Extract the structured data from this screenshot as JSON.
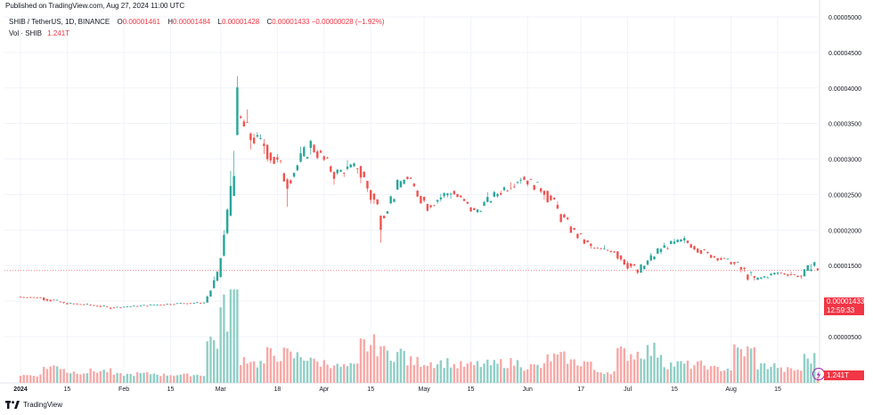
{
  "published": "Published on TradingView.com, Aug 27, 2024 11:00 UTC",
  "legend": {
    "symbol": "SHIB / TetherUS, 1D, BINANCE",
    "o_label": "O",
    "o": "0.00001461",
    "h_label": "H",
    "h": "0.00001484",
    "l_label": "L",
    "l": "0.00001428",
    "c_label": "C",
    "c": "0.00001433",
    "change": "−0.00000028 (−1.92%)",
    "vol_label": "Vol · SHIB",
    "vol": "1.241T"
  },
  "price_tag": {
    "price": "0.00001433",
    "countdown": "12:59:33"
  },
  "vol_tag": "1.241T",
  "brand": "TradingView",
  "colors": {
    "up": "#26a69a",
    "down": "#ef5350",
    "up_vol": "#8fcfc6",
    "down_vol": "#f7a9a7",
    "grid": "#f0f3fa"
  },
  "chart_data": {
    "type": "candlestick",
    "y_axis_ticks": [
      "0.00000500",
      "0.00001000",
      "0.00001500",
      "0.00002000",
      "0.00002500",
      "0.00003000",
      "0.00003500",
      "0.00004000",
      "0.00004500",
      "0.00005000"
    ],
    "x_axis_ticks": [
      "2024",
      "15",
      "Feb",
      "15",
      "Mar",
      "18",
      "Apr",
      "15",
      "May",
      "15",
      "Jun",
      "17",
      "Jul",
      "15",
      "Aug",
      "15"
    ],
    "ylim": [
      5e-06,
      5e-05
    ],
    "x_start": "2024-01-01",
    "series": [
      {
        "date": "2024-01-01",
        "o": 1.06e-05,
        "h": 1.08e-05,
        "l": 1.03e-05,
        "c": 1.05e-05
      },
      {
        "date": "2024-01-08",
        "o": 1.05e-05,
        "h": 1.06e-05,
        "l": 9.1e-06,
        "c": 9.7e-06
      },
      {
        "date": "2024-01-15",
        "o": 9.7e-06,
        "h": 1.01e-05,
        "l": 9.3e-06,
        "c": 9.5e-06
      },
      {
        "date": "2024-01-22",
        "o": 9.5e-06,
        "h": 9.7e-06,
        "l": 8.8e-06,
        "c": 9.1e-06
      },
      {
        "date": "2024-01-29",
        "o": 9.1e-06,
        "h": 9.5e-06,
        "l": 9e-06,
        "c": 9.3e-06
      },
      {
        "date": "2024-02-05",
        "o": 9.3e-06,
        "h": 9.7e-06,
        "l": 9.1e-06,
        "c": 9.5e-06
      },
      {
        "date": "2024-02-12",
        "o": 9.5e-06,
        "h": 9.9e-06,
        "l": 9.4e-06,
        "c": 9.7e-06
      },
      {
        "date": "2024-02-19",
        "o": 9.7e-06,
        "h": 1e-05,
        "l": 9.5e-06,
        "c": 9.8e-06
      },
      {
        "date": "2024-02-26",
        "o": 9.8e-06,
        "h": 1.4e-05,
        "l": 9.7e-06,
        "c": 1.34e-05
      },
      {
        "date": "2024-03-01",
        "o": 1.34e-05,
        "h": 2.3e-05,
        "l": 1.3e-05,
        "c": 2.2e-05
      },
      {
        "date": "2024-03-04",
        "o": 2.2e-05,
        "h": 4.56e-05,
        "l": 2.18e-05,
        "c": 3.6e-05
      },
      {
        "date": "2024-03-07",
        "o": 3.6e-05,
        "h": 3.95e-05,
        "l": 3.1e-05,
        "c": 3.3e-05
      },
      {
        "date": "2024-03-11",
        "o": 3.3e-05,
        "h": 3.6e-05,
        "l": 3e-05,
        "c": 3.2e-05
      },
      {
        "date": "2024-03-15",
        "o": 3.2e-05,
        "h": 3.3e-05,
        "l": 2.4e-05,
        "c": 2.7e-05
      },
      {
        "date": "2024-03-22",
        "o": 2.7e-05,
        "h": 3.3e-05,
        "l": 2.6e-05,
        "c": 3.2e-05
      },
      {
        "date": "2024-03-29",
        "o": 3.2e-05,
        "h": 3.3e-05,
        "l": 2.7e-05,
        "c": 2.8e-05
      },
      {
        "date": "2024-04-05",
        "o": 2.8e-05,
        "h": 3e-05,
        "l": 2.6e-05,
        "c": 2.9e-05
      },
      {
        "date": "2024-04-12",
        "o": 2.9e-05,
        "h": 2.92e-05,
        "l": 1.8e-05,
        "c": 2.2e-05
      },
      {
        "date": "2024-04-19",
        "o": 2.2e-05,
        "h": 2.8e-05,
        "l": 2.15e-05,
        "c": 2.75e-05
      },
      {
        "date": "2024-04-26",
        "o": 2.75e-05,
        "h": 2.8e-05,
        "l": 2.25e-05,
        "c": 2.35e-05
      },
      {
        "date": "2024-05-03",
        "o": 2.35e-05,
        "h": 2.65e-05,
        "l": 2.2e-05,
        "c": 2.55e-05
      },
      {
        "date": "2024-05-10",
        "o": 2.55e-05,
        "h": 2.6e-05,
        "l": 2.2e-05,
        "c": 2.25e-05
      },
      {
        "date": "2024-05-17",
        "o": 2.25e-05,
        "h": 2.6e-05,
        "l": 2.22e-05,
        "c": 2.52e-05
      },
      {
        "date": "2024-05-24",
        "o": 2.52e-05,
        "h": 2.92e-05,
        "l": 2.45e-05,
        "c": 2.75e-05
      },
      {
        "date": "2024-05-31",
        "o": 2.75e-05,
        "h": 2.8e-05,
        "l": 2.4e-05,
        "c": 2.55e-05
      },
      {
        "date": "2024-06-07",
        "o": 2.55e-05,
        "h": 2.62e-05,
        "l": 2e-05,
        "c": 2.05e-05
      },
      {
        "date": "2024-06-14",
        "o": 2.05e-05,
        "h": 2.1e-05,
        "l": 1.7e-05,
        "c": 1.75e-05
      },
      {
        "date": "2024-06-21",
        "o": 1.75e-05,
        "h": 1.8e-05,
        "l": 1.65e-05,
        "c": 1.7e-05
      },
      {
        "date": "2024-06-28",
        "o": 1.7e-05,
        "h": 1.75e-05,
        "l": 1.25e-05,
        "c": 1.4e-05
      },
      {
        "date": "2024-07-05",
        "o": 1.4e-05,
        "h": 1.8e-05,
        "l": 1.35e-05,
        "c": 1.75e-05
      },
      {
        "date": "2024-07-12",
        "o": 1.75e-05,
        "h": 2e-05,
        "l": 1.7e-05,
        "c": 1.85e-05
      },
      {
        "date": "2024-07-19",
        "o": 1.85e-05,
        "h": 1.9e-05,
        "l": 1.6e-05,
        "c": 1.65e-05
      },
      {
        "date": "2024-07-26",
        "o": 1.65e-05,
        "h": 1.7e-05,
        "l": 1.5e-05,
        "c": 1.55e-05
      },
      {
        "date": "2024-08-02",
        "o": 1.55e-05,
        "h": 1.57e-05,
        "l": 1.08e-05,
        "c": 1.3e-05
      },
      {
        "date": "2024-08-09",
        "o": 1.3e-05,
        "h": 1.45e-05,
        "l": 1.25e-05,
        "c": 1.4e-05
      },
      {
        "date": "2024-08-16",
        "o": 1.4e-05,
        "h": 1.45e-05,
        "l": 1.3e-05,
        "c": 1.35e-05
      },
      {
        "date": "2024-08-23",
        "o": 1.35e-05,
        "h": 1.65e-05,
        "l": 1.33e-05,
        "c": 1.55e-05
      },
      {
        "date": "2024-08-27",
        "o": 1.46e-05,
        "h": 1.48e-05,
        "l": 1.43e-05,
        "c": 1.43e-05
      }
    ]
  }
}
